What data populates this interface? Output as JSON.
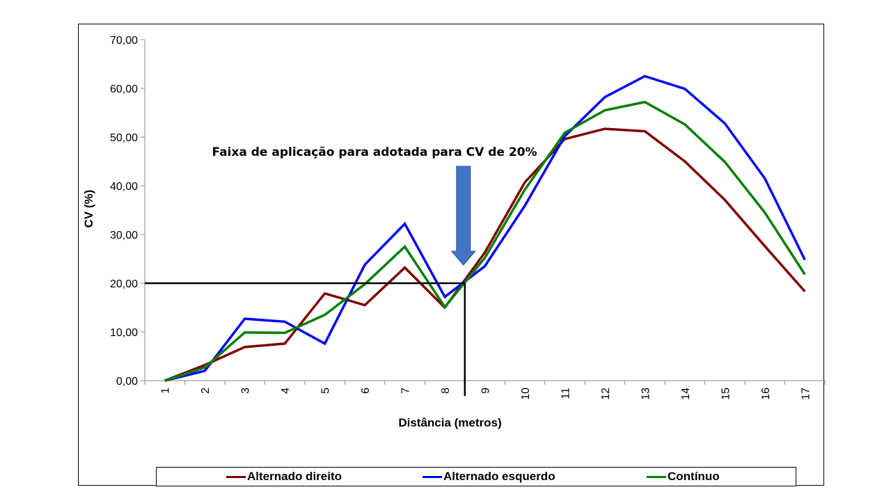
{
  "chart_data": {
    "type": "line",
    "xlabel": "Distância (metros)",
    "ylabel": "CV (%)",
    "ylim": [
      0,
      70
    ],
    "yticks": [
      "0,00",
      "10,00",
      "20,00",
      "30,00",
      "40,00",
      "50,00",
      "60,00",
      "70,00"
    ],
    "categories": [
      "1",
      "2",
      "3",
      "4",
      "5",
      "6",
      "7",
      "8",
      "9",
      "10",
      "11",
      "12",
      "13",
      "14",
      "15",
      "16",
      "17"
    ],
    "series": [
      {
        "name": "Alternado direito",
        "color": "#7f0000",
        "values": [
          0,
          3.2,
          6.9,
          7.6,
          17.9,
          15.5,
          23.2,
          15.0,
          26.3,
          40.7,
          49.6,
          51.7,
          51.2,
          45.0,
          37.1,
          27.6,
          18.3
        ]
      },
      {
        "name": "Alternado esquerdo",
        "color": "#0000ff",
        "values": [
          0,
          2.0,
          12.7,
          12.1,
          7.6,
          23.8,
          32.2,
          17.2,
          23.5,
          35.9,
          50.2,
          58.2,
          62.5,
          59.9,
          52.8,
          41.5,
          24.8
        ]
      },
      {
        "name": "Contínuo",
        "color": "#007f00",
        "values": [
          0,
          2.7,
          9.9,
          9.8,
          13.5,
          19.8,
          27.5,
          15.1,
          25.2,
          39.2,
          50.9,
          55.5,
          57.2,
          52.6,
          44.9,
          34.5,
          21.8
        ]
      }
    ],
    "annotation": {
      "text": "Faixa de aplicação para adotada para CV de 20%",
      "arrow_color": "#4472c4",
      "reference_y": 20,
      "reference_x": 8.5
    },
    "legend_position": "bottom",
    "grid": false
  }
}
